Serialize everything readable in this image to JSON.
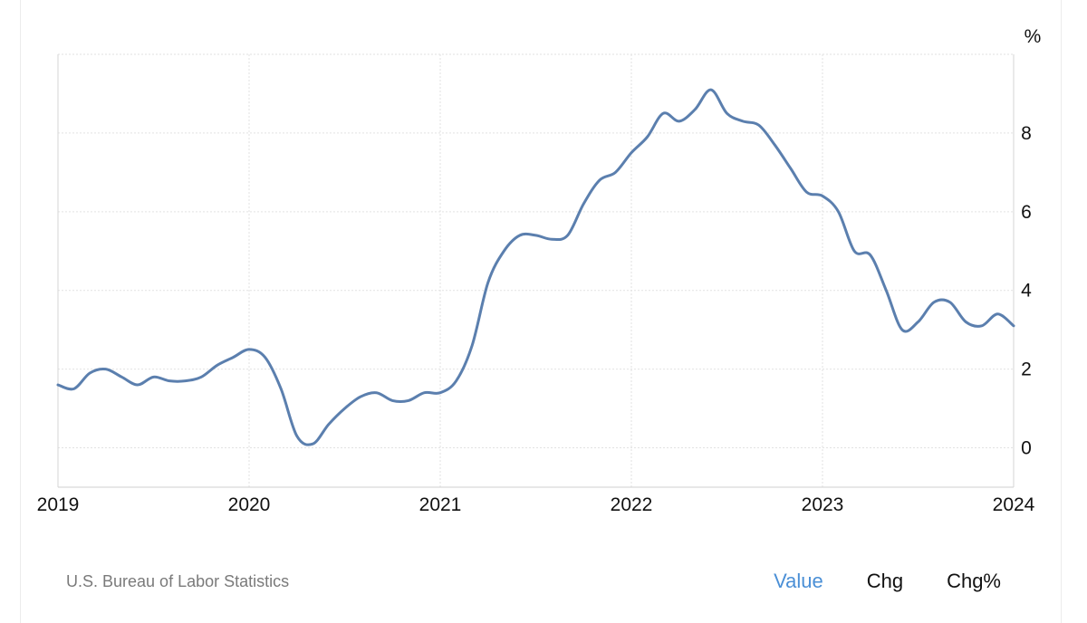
{
  "chart_data": {
    "type": "line",
    "unit": "%",
    "source": "U.S. Bureau of Labor Statistics",
    "x_ticks": [
      "2019",
      "2020",
      "2021",
      "2022",
      "2023",
      "2024"
    ],
    "y_ticks": [
      "0",
      "2",
      "4",
      "6",
      "8"
    ],
    "ylim": [
      -1,
      10
    ],
    "xlim": [
      "2019-01",
      "2024-01"
    ],
    "grid": true,
    "line_color": "#5b7fae",
    "series": [
      {
        "x": [
          "2019-01",
          "2019-02",
          "2019-03",
          "2019-04",
          "2019-05",
          "2019-06",
          "2019-07",
          "2019-08",
          "2019-09",
          "2019-10",
          "2019-11",
          "2019-12",
          "2020-01",
          "2020-02",
          "2020-03",
          "2020-04",
          "2020-05",
          "2020-06",
          "2020-07",
          "2020-08",
          "2020-09",
          "2020-10",
          "2020-11",
          "2020-12",
          "2021-01",
          "2021-02",
          "2021-03",
          "2021-04",
          "2021-05",
          "2021-06",
          "2021-07",
          "2021-08",
          "2021-09",
          "2021-10",
          "2021-11",
          "2021-12",
          "2022-01",
          "2022-02",
          "2022-03",
          "2022-04",
          "2022-05",
          "2022-06",
          "2022-07",
          "2022-08",
          "2022-09",
          "2022-10",
          "2022-11",
          "2022-12",
          "2023-01",
          "2023-02",
          "2023-03",
          "2023-04",
          "2023-05",
          "2023-06",
          "2023-07",
          "2023-08",
          "2023-09",
          "2023-10",
          "2023-11",
          "2023-12",
          "2024-01"
        ],
        "values": [
          1.6,
          1.5,
          1.9,
          2.0,
          1.8,
          1.6,
          1.8,
          1.7,
          1.7,
          1.8,
          2.1,
          2.3,
          2.5,
          2.3,
          1.5,
          0.3,
          0.1,
          0.6,
          1.0,
          1.3,
          1.4,
          1.2,
          1.2,
          1.4,
          1.4,
          1.7,
          2.6,
          4.2,
          5.0,
          5.4,
          5.4,
          5.3,
          5.4,
          6.2,
          6.8,
          7.0,
          7.5,
          7.9,
          8.5,
          8.3,
          8.6,
          9.1,
          8.5,
          8.3,
          8.2,
          7.7,
          7.1,
          6.5,
          6.4,
          6.0,
          5.0,
          4.9,
          4.0,
          3.0,
          3.2,
          3.7,
          3.7,
          3.2,
          3.1,
          3.4,
          3.1
        ]
      }
    ]
  },
  "tabs": [
    {
      "label": "Value",
      "active": true
    },
    {
      "label": "Chg",
      "active": false
    },
    {
      "label": "Chg%",
      "active": false
    }
  ]
}
